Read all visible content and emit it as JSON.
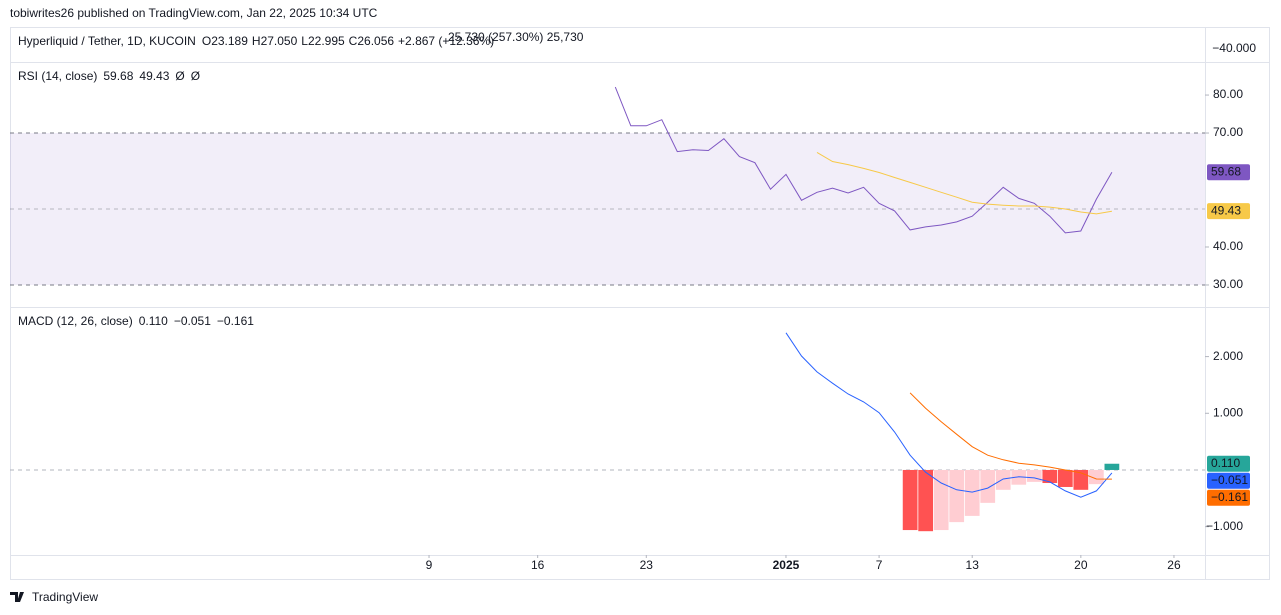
{
  "header": {
    "publisher": "tobiwrites26 published on TradingView.com, Jan 22, 2025 10:34 UTC"
  },
  "price_pane": {
    "symbol": "Hyperliquid / Tether, 1D, KUCOIN",
    "ohlc": [
      [
        "O",
        "23.189"
      ],
      [
        "H",
        "27.050"
      ],
      [
        "L",
        "22.995"
      ],
      [
        "C",
        "26.056"
      ]
    ],
    "change": "+2.867 (+12.36%)",
    "overlay": "25.730 (257.30%) 25,730",
    "axis_label": "−40.000"
  },
  "footer": {
    "brand": "TradingView"
  },
  "chart_data": [
    {
      "type": "line",
      "title": "RSI (14, close)",
      "x": [
        "2024-12-21",
        "2024-12-22",
        "2024-12-23",
        "2024-12-24",
        "2024-12-25",
        "2024-12-26",
        "2024-12-27",
        "2024-12-28",
        "2024-12-29",
        "2024-12-30",
        "2024-12-31",
        "2025-01-01",
        "2025-01-02",
        "2025-01-03",
        "2025-01-04",
        "2025-01-05",
        "2025-01-06",
        "2025-01-07",
        "2025-01-08",
        "2025-01-09",
        "2025-01-10",
        "2025-01-11",
        "2025-01-12",
        "2025-01-13",
        "2025-01-14",
        "2025-01-15",
        "2025-01-16",
        "2025-01-17",
        "2025-01-18",
        "2025-01-19",
        "2025-01-20",
        "2025-01-21",
        "2025-01-22"
      ],
      "xlim": [
        "2024-11-12",
        "2025-01-28"
      ],
      "ylim": [
        24.2,
        88.7
      ],
      "yticks": [
        {
          "value": 30,
          "label": "30.00"
        },
        {
          "value": 40,
          "label": "40.00"
        },
        {
          "value": 70,
          "label": "70.00"
        },
        {
          "value": 80,
          "label": "80.00"
        }
      ],
      "upper_band": 70,
      "middle_band": 50,
      "lower_band": 30,
      "band_color": "#7e57c2",
      "legend_extra": [
        "Ø",
        "Ø"
      ],
      "series": [
        {
          "color": "#7e57c2",
          "last_label": "59.68",
          "values": [
            82.1,
            71.9,
            71.9,
            73.5,
            65.1,
            65.6,
            65.4,
            68.5,
            63.8,
            62.2,
            55.2,
            59.1,
            52.3,
            54.4,
            55.5,
            54.2,
            55.7,
            51.5,
            49.5,
            44.5,
            45.3,
            45.8,
            46.6,
            48.1,
            51.8,
            55.7,
            52.8,
            51.5,
            48.1,
            43.7,
            44.2,
            52.6,
            59.68
          ]
        },
        {
          "color": "#f7c948",
          "last_label": "49.43",
          "values": [
            null,
            null,
            null,
            null,
            null,
            null,
            null,
            null,
            null,
            null,
            null,
            null,
            null,
            64.9,
            62.5,
            61.7,
            60.7,
            59.6,
            58.3,
            57.0,
            55.7,
            54.4,
            53.1,
            51.8,
            51.3,
            51.0,
            50.8,
            50.8,
            50.5,
            50.0,
            49.2,
            48.7,
            49.43
          ]
        }
      ]
    },
    {
      "type": "line",
      "title": "MACD (12, 26, close)",
      "x": [
        "2025-01-01",
        "2025-01-02",
        "2025-01-03",
        "2025-01-04",
        "2025-01-05",
        "2025-01-06",
        "2025-01-07",
        "2025-01-08",
        "2025-01-09",
        "2025-01-10",
        "2025-01-11",
        "2025-01-12",
        "2025-01-13",
        "2025-01-14",
        "2025-01-15",
        "2025-01-16",
        "2025-01-17",
        "2025-01-18",
        "2025-01-19",
        "2025-01-20",
        "2025-01-21",
        "2025-01-22"
      ],
      "xlim": [
        "2024-11-12",
        "2025-01-28"
      ],
      "xticks": [
        {
          "value": "2024-12-09",
          "label": "9"
        },
        {
          "value": "2024-12-16",
          "label": "16"
        },
        {
          "value": "2024-12-23",
          "label": "23"
        },
        {
          "value": "2025-01-01",
          "label": "2025"
        },
        {
          "value": "2025-01-07",
          "label": "7"
        },
        {
          "value": "2025-01-13",
          "label": "13"
        },
        {
          "value": "2025-01-20",
          "label": "20"
        },
        {
          "value": "2025-01-26",
          "label": "26"
        }
      ],
      "ylim": [
        -1.5,
        2.875
      ],
      "yticks": [
        {
          "value": -1,
          "label": "−1.000"
        },
        {
          "value": 1,
          "label": "1.000"
        },
        {
          "value": 2,
          "label": "2.000"
        }
      ],
      "zero_line": 0,
      "series": [
        {
          "type": "bar",
          "color": "#26a69a",
          "last_label": "0.110",
          "colors": [
            null,
            null,
            null,
            null,
            null,
            null,
            null,
            null,
            "#ff5252",
            "#ff5252",
            "#ffcdd2",
            "#ffcdd2",
            "#ffcdd2",
            "#ffcdd2",
            "#ffcdd2",
            "#ffcdd2",
            "#ffcdd2",
            "#ff5252",
            "#ff5252",
            "#ff5252",
            "#ffcdd2",
            "#26a69a"
          ],
          "values": [
            null,
            null,
            null,
            null,
            null,
            null,
            null,
            null,
            -1.06,
            -1.08,
            -1.06,
            -0.92,
            -0.81,
            -0.58,
            -0.35,
            -0.26,
            -0.21,
            -0.23,
            -0.3,
            -0.35,
            -0.25,
            0.11
          ]
        },
        {
          "color": "#2962ff",
          "last_label": "−0.051",
          "values": [
            2.42,
            2.01,
            1.73,
            1.53,
            1.34,
            1.2,
            1.01,
            0.67,
            0.26,
            -0.04,
            -0.23,
            -0.35,
            -0.39,
            -0.32,
            -0.16,
            -0.12,
            -0.14,
            -0.21,
            -0.37,
            -0.48,
            -0.37,
            -0.051
          ]
        },
        {
          "color": "#ff6d00",
          "last_label": "−0.161",
          "values": [
            null,
            null,
            null,
            null,
            null,
            null,
            null,
            null,
            1.36,
            1.09,
            0.85,
            0.63,
            0.41,
            0.26,
            0.18,
            0.12,
            0.09,
            0.05,
            0.0,
            -0.05,
            -0.16,
            -0.161
          ]
        }
      ]
    }
  ]
}
